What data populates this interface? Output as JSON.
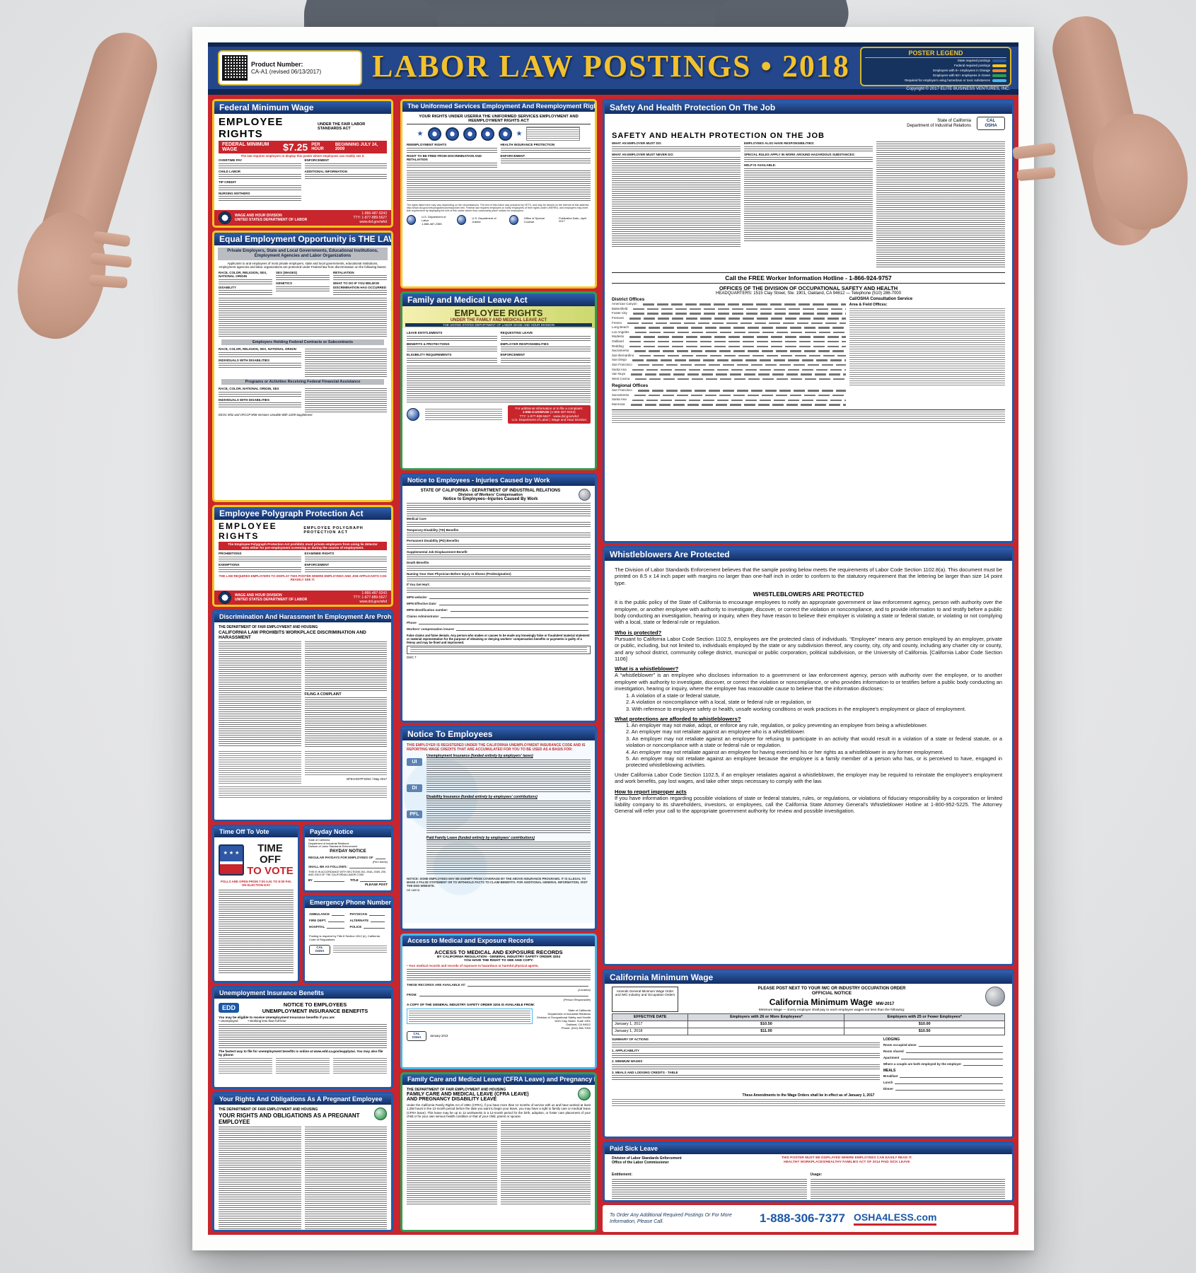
{
  "colors": {
    "poster_red": "#c8252c",
    "banner_navy": "#24478c",
    "gold_title": "#f2c12e",
    "state_blue": "#2458a8",
    "federal_yellow": "#f5c71d",
    "fifty_plus_green": "#2e9e50",
    "hazard_cyan": "#45b8e8",
    "five_plus_orange": "#f08a24"
  },
  "banner": {
    "product_label": "Product Number:",
    "product_number": "CA-A1 (revised 06/13/2017)",
    "title": "LABOR LAW POSTINGS • 2018",
    "legend_title": "POSTER LEGEND",
    "legend_items": [
      {
        "label": "State required postings",
        "color": "#2458a8"
      },
      {
        "label": "Federal required postings",
        "color": "#f5c71d"
      },
      {
        "label": "Employers with 5+ employees in Orange",
        "color": "#f08a24"
      },
      {
        "label": "Employers with 50+ employees in Green",
        "color": "#2e9e50"
      },
      {
        "label": "Required for employers using hazardous or toxic substances",
        "color": "#45b8e8"
      }
    ],
    "copyright": "Copyright © 2017 ELITE BUSINESS VENTURES, INC."
  },
  "fmw": {
    "header": "Federal Minimum Wage",
    "title": "EMPLOYEE RIGHTS",
    "subtitle": "UNDER THE FAIR LABOR STANDARDS ACT",
    "wage_label": "FEDERAL MINIMUM WAGE",
    "wage_amount": "$7.25",
    "wage_unit": "PER HOUR",
    "wage_effective": "BEGINNING JULY 24, 2009",
    "display_note": "The law requires employers to display this poster where employees can readily see it.",
    "headings_left": [
      "OVERTIME PAY",
      "CHILD LABOR",
      "TIP CREDIT",
      "NURSING MOTHERS"
    ],
    "headings_right": [
      "ENFORCEMENT",
      "ADDITIONAL INFORMATION"
    ],
    "footer_agency": "WAGE AND HOUR DIVISION",
    "footer_dept": "UNITED STATES DEPARTMENT OF LABOR",
    "footer_phone": "1-866-487-9243",
    "footer_tty": "TTY: 1-877-889-5627",
    "footer_web": "www.dol.gov/whd",
    "whd_label": "WHD"
  },
  "eeo": {
    "header": "Equal Employment Opportunity is THE LAW",
    "sub1": "Private Employers, State and Local Governments, Educational Institutions,",
    "sub2": "Employment Agencies and Labor Organizations",
    "intro": "Applicants to and employees of most private employers, state and local governments, educational institutions, employment agencies and labor organizations are protected under Federal law from discrimination on the following bases:",
    "headings_col1": [
      "RACE, COLOR, RELIGION, SEX, NATIONAL ORIGIN",
      "DISABILITY"
    ],
    "headings_col2": [
      "SEX (WAGES)",
      "GENETICS"
    ],
    "headings_col3": [
      "RETALIATION",
      "WHAT TO DO IF YOU BELIEVE DISCRIMINATION HAS OCCURRED"
    ],
    "bar1": "Employers Holding Federal Contracts or Subcontracts",
    "sub_headings1": [
      "RACE, COLOR, RELIGION, SEX, NATIONAL ORIGIN",
      "INDIVIDUALS WITH DISABILITIES"
    ],
    "bar2": "Programs or Activities Receiving Federal Financial Assistance",
    "sub_headings2": [
      "RACE, COLOR, NATIONAL ORIGIN, SEX",
      "INDIVIDUALS WITH DISABILITIES"
    ],
    "footnote": "EEOC 9/02 and OFCCP 9/08 Versions Useable With 11/09 Supplement"
  },
  "polygraph": {
    "header": "Employee Polygraph Protection Act",
    "title": "EMPLOYEE RIGHTS",
    "title2": "EMPLOYEE POLYGRAPH PROTECTION ACT",
    "banner": "The Employee Polygraph Protection Act prohibits most private employers from using lie detector tests either for pre-employment screening or during the course of employment.",
    "headings_left": [
      "PROHIBITIONS",
      "EXEMPTIONS"
    ],
    "headings_right": [
      "EXAMINEE RIGHTS",
      "ENFORCEMENT"
    ],
    "law_line": "THE LAW REQUIRES EMPLOYERS TO DISPLAY THIS POSTER WHERE EMPLOYEES AND JOB APPLICANTS CAN READILY SEE IT.",
    "footer_agency": "WAGE AND HOUR DIVISION",
    "footer_dept": "UNITED STATES DEPARTMENT OF LABOR",
    "footer_phone": "1-866-487-9243",
    "footer_tty": "TTY: 1-877-889-5627",
    "footer_web": "www.dol.gov/whd"
  },
  "discrimination": {
    "header": "Discrimination And Harassment In Employment Are Prohibited By Law",
    "agency": "THE DEPARTMENT OF FAIR EMPLOYMENT AND HOUSING",
    "title": "CALIFORNIA LAW PROHIBITS WORKPLACE DISCRIMINATION AND HARASSMENT",
    "sub_heading": "FILING A COMPLAINT",
    "code": "DFEH-E07P-ENG / May 2017"
  },
  "vote": {
    "header": "Time Off To Vote",
    "big1": "TIME OFF",
    "big2": "TO VOTE",
    "sub": "POLLS ARE OPEN FROM 7:00 A.M. TO 8:00 P.M. ON ELECTION DAY"
  },
  "payday": {
    "header": "Payday Notice",
    "agency": [
      "State of California",
      "Department of Industrial Relations",
      "Division of Labor Standards Enforcement"
    ],
    "title": "PAYDAY NOTICE",
    "line1": "REGULAR PAYDAYS",
    "line1b": "FOR EMPLOYEES OF",
    "firm": "(Firm Name)",
    "line2": "SHALL BE AS FOLLOWS:",
    "accordance": "THIS IS IN ACCORDANCE WITH SECTIONS 204, 204A, 204B, 205, AND 205.5 OF THE CALIFORNIA LABOR CODE",
    "by_label": "BY",
    "title_label": "TITLE",
    "please_post": "PLEASE POST"
  },
  "emergency": {
    "header": "Emergency Phone Numbers",
    "labels_left": [
      "AMBULANCE",
      "FIRE DEPT.",
      "HOSPITAL"
    ],
    "labels_right": [
      "PHYSICIAN",
      "ALTERNATE",
      "POLICE"
    ],
    "note": "Posting is required by Title 8 Section 1512 (e), California Code of Regulations"
  },
  "unemployment": {
    "header": "Unemployment Insurance Benefits",
    "brand": "EDD",
    "title1": "NOTICE TO EMPLOYEES",
    "title2": "UNEMPLOYMENT INSURANCE BENEFITS",
    "intro_bold": "You may be eligible to receive Unemployment Insurance benefits if you are:",
    "bullets": [
      "• Unemployed",
      "• Working less than full-time"
    ],
    "fastest": "The fastest way to file for unemployment benefits is online at www.edd.ca.gov/eapply4ui. You may also file by phone:"
  },
  "pregnant": {
    "header": "Your Rights And Obligations As A Pregnant Employee",
    "agency": "THE DEPARTMENT OF FAIR EMPLOYMENT AND HOUSING",
    "title": "YOUR RIGHTS AND OBLIGATIONS AS A PREGNANT EMPLOYEE"
  },
  "userra": {
    "header": "The Uniformed Services Employment And Reemployment Rights Act",
    "banner": "YOUR RIGHTS UNDER USERRA THE UNIFORMED SERVICES EMPLOYMENT AND REEMPLOYMENT RIGHTS ACT",
    "headings_left": [
      "REEMPLOYMENT RIGHTS",
      "RIGHT TO BE FREE FROM DISCRIMINATION AND RETALIATION"
    ],
    "headings_right": [
      "HEALTH INSURANCE PROTECTION",
      "ENFORCEMENT"
    ],
    "footer_note": "The rights listed here may vary depending on the circumstances. The text of this notice was prepared by VETS, and may be viewed on the internet at this address: http://www.dol.gov/vets/programs/userra/poster.htm. Federal law requires employers to notify employees of their rights under USERRA, and employers may meet this requirement by displaying the text of this notice where they customarily place notices for employees.",
    "logo1a": "U.S. Department of Labor",
    "logo1b": "1-866-487-2365",
    "logo2": "U.S. Department of Justice",
    "logo3": "Office of Special Counsel",
    "pub": "Publication Date—April 2017"
  },
  "fmla": {
    "header": "Family and Medical Leave Act",
    "title": "EMPLOYEE RIGHTS",
    "subtitle": "UNDER THE FAMILY AND MEDICAL LEAVE ACT",
    "dept_line": "THE UNITED STATES DEPARTMENT OF LABOR  WAGE AND HOUR DIVISION",
    "headings_left": [
      "LEAVE ENTITLEMENTS",
      "BENEFITS & PROTECTIONS",
      "ELIGIBILITY REQUIREMENTS"
    ],
    "headings_right": [
      "REQUESTING LEAVE",
      "EMPLOYER RESPONSIBILITIES",
      "ENFORCEMENT"
    ],
    "contact_title": "For additional information or to file a complaint:",
    "contact_phone": "1-866-4-USWAGE",
    "contact_phone2": "(1-866-487-9243)",
    "contact_tty": "TTY: 1-877-889-5627",
    "contact_web": "www.dol.gov/whd",
    "contact_agency": "U.S. Department of Labor | Wage and Hour Division"
  },
  "injuries": {
    "header": "Notice to Employees - Injuries Caused by Work",
    "line1": "STATE OF CALIFORNIA - DEPARTMENT OF INDUSTRIAL RELATIONS",
    "line2": "Division of Workers' Compensation",
    "line3": "Notice to Employees--Injuries Caused By Work",
    "benefit_headings": [
      "Medical Care",
      "Temporary Disability (TD) Benefits",
      "Permanent Disability (PD) Benefits",
      "Supplemental Job Displacement Benefit",
      "Death Benefits",
      "Naming Your Own Physician Before Injury or Illness (Predesignation)",
      "If You Get Hurt:"
    ],
    "fields": [
      "MPN website:",
      "MPN Effective Date:",
      "MPN Identification number:",
      "Claims Administrator",
      "Phone",
      "Workers' compensation insurer"
    ],
    "false_claims": "False claims and false denials. Any person who makes or causes to be made any knowingly false or fraudulent material statement or material representation for the purpose of obtaining or denying workers' compensation benefits or payments is guilty of a felony and may be fined and imprisoned.",
    "form_code": "DWC 7"
  },
  "edd": {
    "header": "Notice To Employees",
    "intro": "THIS EMPLOYER IS REGISTERED UNDER THE CALIFORNIA UNEMPLOYMENT INSURANCE CODE AND IS REPORTING WAGE CREDITS THAT ARE ACCUMULATED FOR YOU TO BE USED AS A BASIS FOR:",
    "chips": [
      "UI",
      "DI",
      "PFL"
    ],
    "programs": [
      {
        "name": "Unemployment Insurance",
        "funding": "(funded entirely by employers' taxes)"
      },
      {
        "name": "Disability Insurance",
        "funding": "(funded entirely by employees' contributions)"
      },
      {
        "name": "Paid Family Leave",
        "funding": "(funded entirely by employees' contributions)"
      }
    ],
    "note": "NOTICE: SOME EMPLOYEES MAY BE EXEMPT FROM COVERAGE BY THE ABOVE INSURANCE PROGRAMS. IT IS ILLEGAL TO MAKE A FALSE STATEMENT OR TO WITHHOLD FACTS TO CLAIM BENEFITS. FOR ADDITIONAL GENERAL INFORMATION, VISIT THE EDD WEBSITE.",
    "form_code": "DE 1857A"
  },
  "access": {
    "header": "Access to Medical and Exposure Records",
    "title": "ACCESS TO MEDICAL AND EXPOSURE RECORDS",
    "sub1": "BY CALIFORNIA REGULATION - GENERAL INDUSTRY SAFETY ORDER 3204",
    "sub2": "YOU HAVE THE RIGHT TO SEE AND COPY:",
    "bullet1": "Your medical records and records of exposure to hazardous or harmful physical agents,",
    "available_label": "THESE RECORDS ARE AVAILABLE AT:",
    "location_label": "(Location)",
    "from_label": "FROM:",
    "person_label": "(Person Responsible)",
    "copy_line": "A COPY OF THE GENERAL INDUSTRY SAFETY ORDER 3204 IS AVAILABLE FROM:",
    "agency": [
      "State of California",
      "Department of Industrial Relations",
      "Division of Occupational Safety and Health",
      "1515 Clay Street, Suite 1901",
      "Oakland, CA 94612",
      "Phone: (510) 286-7000"
    ],
    "logo": "CAL OSHA",
    "date": "January 2013"
  },
  "cfra": {
    "header": "Family Care and Medical Leave (CFRA Leave) and Pregnancy Disability Leave",
    "agency": "THE DEPARTMENT OF FAIR EMPLOYMENT AND HOUSING",
    "title1": "FAMILY CARE AND MEDICAL LEAVE (CFRA LEAVE)",
    "title2": "AND PREGNANCY DISABILITY LEAVE",
    "intro": "Under the California Family Rights Act of 1991 (CFRA), if you have more than 12 months of service with us and have worked at least 1,250 hours in the 12-month period before the date you want to begin your leave, you may have a right to family care or medical leave (CFRA leave). This leave may be up to 12 workweeks in a 12-month period for the birth, adoption, or foster care placement of your child or for your own serious health condition or that of your child, parent or spouse."
  },
  "safety": {
    "header": "Safety And Health Protection On The Job",
    "state1": "State of California",
    "state2": "Department of Industrial Relations",
    "logo": "CAL OSHA",
    "title": "SAFETY AND HEALTH PROTECTION ON THE JOB",
    "headings_left": [
      "WHAT AN EMPLOYER MUST DO:",
      "WHAT AN EMPLOYER MUST NEVER DO:"
    ],
    "headings_right": [
      "EMPLOYEES ALSO HAVE RESPONSIBILITIES:",
      "SPECIAL RULES APPLY IN WORK AROUND HAZARDOUS SUBSTANCES:",
      "HELP IS AVAILABLE:"
    ],
    "hotline": "Call the FREE Worker Information Hotline - 1-866-924-9757",
    "offices_title": "OFFICES OF THE DIVISION OF OCCUPATIONAL SAFETY AND HEALTH",
    "hq": "HEADQUARTERS: 1515 Clay Street, Ste. 1901, Oakland, CA 94612 — Telephone (510) 286-7000",
    "consult": "Cal/OSHA Consultation Service",
    "district_label": "District Offices",
    "districts": [
      "American Canyon",
      "Bakersfield",
      "Foster City",
      "Fremont",
      "Fresno",
      "Long Beach",
      "Los Angeles",
      "Modesto",
      "Oakland",
      "Redding",
      "Sacramento",
      "San Bernardino",
      "San Diego",
      "San Francisco",
      "Santa Ana",
      "Van Nuys",
      "West Covina"
    ],
    "area_label": "Area & Field Offices:",
    "regional_label": "Regional Offices",
    "regions": [
      "San Francisco",
      "Sacramento",
      "Santa Ana",
      "Monrovia"
    ]
  },
  "whistle": {
    "header": "Whistleblowers Are Protected",
    "intro": "The Division of Labor Standards Enforcement believes that the sample posting below meets the requirements of Labor Code Section 1102.8(a). This document must be printed on 8.5 x 14 inch paper with margins no larger than one-half inch in order to conform to the statutory requirement that the lettering be larger than size 14 point type.",
    "title": "WHISTLEBLOWERS ARE PROTECTED",
    "p1": "It is the public policy of the State of California to encourage employees to notify an appropriate government or law enforcement agency, person with authority over the employee, or another employee with authority to investigate, discover, or correct the violation or noncompliance, and to provide information to and testify before a public body conducting an investigation, hearing or inquiry, when they have reason to believe their employer is violating a state or federal statute, or violating or not complying with a local, state or federal rule or regulation.",
    "q1": "Who is protected?",
    "a1": "Pursuant to California Labor Code Section 1102.5, employees are the protected class of individuals. “Employee” means any person employed by an employer, private or public, including, but not limited to, individuals employed by the state or any subdivision thereof, any county, city, city and county, including any charter city or county, and any school district, community college district, municipal or public corporation, political subdivision, or the University of California. [California Labor Code Section 1106]",
    "q2": "What is a whistleblower?",
    "a2": "A “whistleblower” is an employee who discloses information to a government or law enforcement agency, person with authority over the employee, or to another employee with authority to investigate, discover, or correct the violation or noncompliance, or who provides information to or testifies before a public body conducting an investigation, hearing or inquiry, where the employee has reasonable cause to believe that the information discloses:",
    "a2_items": [
      "1.  A violation of a state or federal statute,",
      "2.  A violation or noncompliance with a local, state or federal rule or regulation, or",
      "3.  With reference to employee safety or health, unsafe working conditions or work practices in the employee's employment or place of employment."
    ],
    "q3": "What protections are afforded to whistleblowers?",
    "a3_items": [
      "1.  An employer may not make, adopt, or enforce any rule, regulation, or policy preventing an employee from being a whistleblower.",
      "2.  An employer may not retaliate against an employee who is a whistleblower.",
      "3.  An employer may not retaliate against an employee for refusing to participate in an activity that would result in a violation of a state or federal statute, or a violation or noncompliance with a state or federal rule or regulation.",
      "4.  An employer may not retaliate against an employee for having exercised his or her rights as a whistleblower in any former employment.",
      "5.  An employer may not retaliate against an employee because the employee is a family member of a person who has, or is perceived to have, engaged in protected whistleblowing activities."
    ],
    "under": "Under California Labor Code Section 1102.5, if an employer retaliates against a whistleblower, the employer may be required to reinstate the employee's employment and work benefits, pay lost wages, and take other steps necessary to comply with the law.",
    "q4": "How to report improper acts",
    "a4": "If you have information regarding possible violations of state or federal statutes, rules, or regulations, or violations of fiduciary responsibility by a corporation or limited liability company to its shareholders, investors, or employees, call the California State Attorney General's Whistleblower Hotline at 1-800-952-5225. The Attorney General will refer your call to the appropriate government authority for review and possible investigation."
  },
  "cmw": {
    "header": "California Minimum Wage",
    "side_box": "Amends General Minimum Wage Order and IWC Industry and Occupation Orders",
    "post_line": "PLEASE POST NEXT TO YOUR IWC OR INDUSTRY OCCUPATION ORDER",
    "official": "OFFICIAL NOTICE",
    "title": "California Minimum Wage",
    "code": "MW-2017",
    "subtitle": "Minimum Wage — Every employer shall pay to each employee wages not less than the following:",
    "table_headers": [
      "EFFECTIVE DATE",
      "Employers with 26 or More Employees*",
      "Employers with 25 or Fewer Employees*"
    ],
    "table_rows": [
      [
        "January 1, 2017",
        "$10.50",
        "$10.00"
      ],
      [
        "January 1, 2018",
        "$11.00",
        "$10.50"
      ]
    ],
    "body_headings": [
      "SUMMARY OF ACTIONS",
      "1. APPLICABILITY",
      "2. MINIMUM WAGES",
      "3. MEALS AND LODGING CREDITS - TABLE"
    ],
    "lodging_label": "LODGING",
    "meals_label": "MEALS",
    "lodging_items": [
      "Room occupied alone",
      "Room shared",
      "Apartment",
      "Where a couple are both employed by the employer"
    ],
    "meals_items": [
      "Breakfast",
      "Lunch",
      "Dinner"
    ],
    "effective_note": "These Amendments to the Wage Orders shall be in effect as of January 1, 2017"
  },
  "psl": {
    "header": "Paid Sick Leave",
    "agency1": "Division of Labor Standards Enforcement",
    "agency2": "Office of the Labor Commissioner",
    "notice1": "THIS POSTER MUST BE DISPLAYED WHERE EMPLOYEES CAN EASILY READ IT.",
    "notice2": "HEALTHY WORKPLACES/HEALTHY FAMILIES ACT OF 2014 PAID SICK LEAVE",
    "h1": "Entitlement:",
    "h2": "Usage:"
  },
  "footer": {
    "order_note": "To Order Any Additional Required Postings Or For More Information, Please Call.",
    "phone": "1-888-306-7377",
    "brand": "OSHA4LESS.com"
  }
}
